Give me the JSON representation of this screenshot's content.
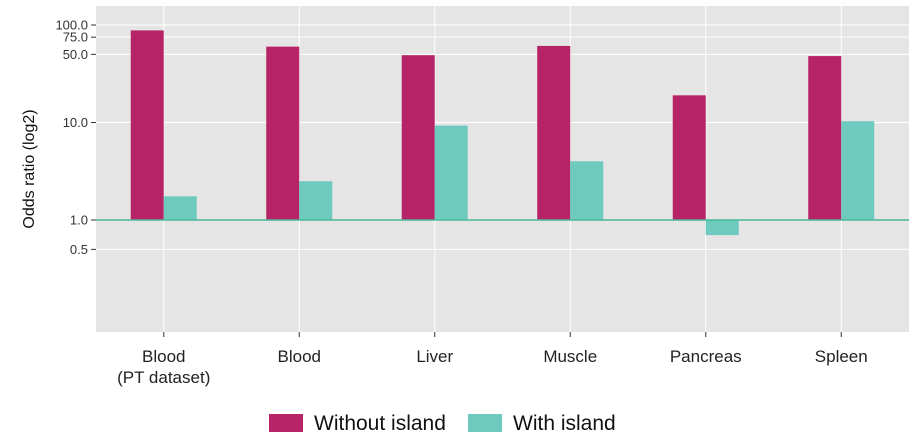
{
  "chart_data": {
    "type": "bar",
    "ylabel": "Odds ratio (log2)",
    "yscale": "log2",
    "ylim": [
      0.125,
      128
    ],
    "reference_line": 1.0,
    "y_ticks": [
      {
        "value": 0.5,
        "label": "0.5"
      },
      {
        "value": 1.0,
        "label": "1.0"
      },
      {
        "value": 10.0,
        "label": "10.0"
      },
      {
        "value": 50.0,
        "label": "50.0"
      },
      {
        "value": 75.0,
        "label": "75.0"
      },
      {
        "value": 100.0,
        "label": "100.0"
      }
    ],
    "categories": [
      "Blood\n(PT dataset)",
      "Blood",
      "Liver",
      "Muscle",
      "Pancreas",
      "Spleen"
    ],
    "series": [
      {
        "name": "Without island",
        "color": "#B72367",
        "values": [
          88,
          60,
          49,
          61,
          19,
          48
        ]
      },
      {
        "name": "With island",
        "color": "#6EC9BE",
        "values": [
          1.75,
          2.5,
          9.3,
          4.0,
          0.7,
          10.3
        ]
      }
    ],
    "legend_position": "bottom",
    "grid": true,
    "background": "#E5E5E5",
    "reference_line_color": "#4DB89A"
  }
}
